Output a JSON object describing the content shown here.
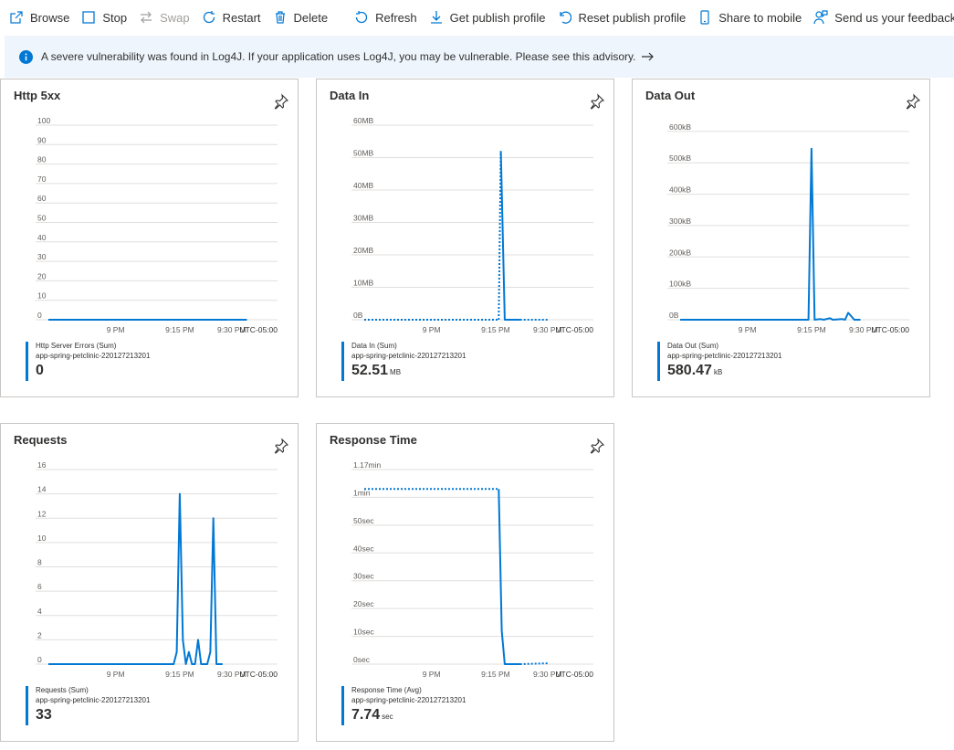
{
  "toolbar": {
    "browse": "Browse",
    "stop": "Stop",
    "swap": "Swap",
    "restart": "Restart",
    "delete": "Delete",
    "refresh": "Refresh",
    "get_publish_profile": "Get publish profile",
    "reset_publish_profile": "Reset publish profile",
    "share_to_mobile": "Share to mobile",
    "feedback": "Send us your feedback"
  },
  "banner": {
    "text": "A severe vulnerability was found in Log4J. If your application uses Log4J, you may be vulnerable. Please see this advisory."
  },
  "colors": {
    "accent": "#0078d4",
    "banner_bg": "#eef5fc",
    "grid": "#e1dfdd"
  },
  "tiles": [
    {
      "title": "Http 5xx",
      "metric": "Http Server Errors (Sum)",
      "resource": "app-spring-petclinic-220127213201",
      "value": "0",
      "unit": ""
    },
    {
      "title": "Data In",
      "metric": "Data In (Sum)",
      "resource": "app-spring-petclinic-220127213201",
      "value": "52.51",
      "unit": "MB"
    },
    {
      "title": "Data Out",
      "metric": "Data Out (Sum)",
      "resource": "app-spring-petclinic-220127213201",
      "value": "580.47",
      "unit": "kB"
    },
    {
      "title": "Requests",
      "metric": "Requests (Sum)",
      "resource": "app-spring-petclinic-220127213201",
      "value": "33",
      "unit": ""
    },
    {
      "title": "Response Time",
      "metric": "Response Time (Avg)",
      "resource": "app-spring-petclinic-220127213201",
      "value": "7.74",
      "unit": "sec"
    }
  ],
  "chart_data": [
    {
      "type": "line",
      "title": "Http 5xx",
      "x_ticks": [
        "9 PM",
        "9:15 PM",
        "9:30 PM"
      ],
      "timezone": "UTC-05:00",
      "y_ticks": [
        "0",
        "10",
        "20",
        "30",
        "40",
        "50",
        "60",
        "70",
        "80",
        "90",
        "100"
      ],
      "ylim": [
        0,
        100
      ],
      "series": [
        {
          "x": [
            0,
            65
          ],
          "y": [
            0,
            0
          ],
          "style": "solid"
        }
      ]
    },
    {
      "type": "line",
      "title": "Data In",
      "x_ticks": [
        "9 PM",
        "9:15 PM",
        "9:30 PM"
      ],
      "timezone": "UTC-05:00",
      "y_ticks": [
        "0B",
        "10MB",
        "20MB",
        "30MB",
        "40MB",
        "50MB",
        "60MB"
      ],
      "ylim": [
        0,
        60
      ],
      "series": [
        {
          "x": [
            0,
            44
          ],
          "y": [
            0,
            0
          ],
          "style": "dotted"
        },
        {
          "x": [
            44,
            44.7
          ],
          "y": [
            0,
            52
          ],
          "style": "dotted"
        },
        {
          "x": [
            44.7,
            46,
            51
          ],
          "y": [
            52,
            0,
            0
          ],
          "style": "solid"
        },
        {
          "x": [
            51,
            60
          ],
          "y": [
            0,
            0
          ],
          "style": "dotted"
        }
      ]
    },
    {
      "type": "line",
      "title": "Data Out",
      "x_ticks": [
        "9 PM",
        "9:15 PM",
        "9:30 PM"
      ],
      "timezone": "UTC-05:00",
      "y_ticks": [
        "0B",
        "100kB",
        "200kB",
        "300kB",
        "400kB",
        "500kB",
        "600kB"
      ],
      "ylim": [
        0,
        620
      ],
      "series": [
        {
          "x": [
            0,
            42,
            43,
            44,
            46,
            47,
            49,
            50,
            53,
            54,
            55,
            57,
            59
          ],
          "y": [
            0,
            0,
            545,
            0,
            2,
            0,
            5,
            0,
            2,
            0,
            22,
            0,
            0
          ],
          "style": "solid"
        }
      ]
    },
    {
      "type": "line",
      "title": "Requests",
      "x_ticks": [
        "9 PM",
        "9:15 PM",
        "9:30 PM"
      ],
      "timezone": "UTC-05:00",
      "y_ticks": [
        "0",
        "2",
        "4",
        "6",
        "8",
        "10",
        "12",
        "14",
        "16"
      ],
      "ylim": [
        0,
        16
      ],
      "series": [
        {
          "x": [
            0,
            41,
            42,
            43,
            44,
            45,
            46,
            47,
            48,
            49,
            50,
            52,
            53,
            54,
            55,
            57
          ],
          "y": [
            0,
            0,
            1,
            14,
            2,
            0,
            1,
            0,
            0,
            2,
            0,
            0,
            1,
            12,
            0,
            0
          ],
          "style": "solid"
        }
      ]
    },
    {
      "type": "line",
      "title": "Response Time",
      "x_ticks": [
        "9 PM",
        "9:15 PM",
        "9:30 PM"
      ],
      "timezone": "UTC-05:00",
      "y_ticks": [
        "0sec",
        "10sec",
        "20sec",
        "30sec",
        "40sec",
        "50sec",
        "1min",
        "1.17min"
      ],
      "ylim": [
        0,
        70
      ],
      "series": [
        {
          "x": [
            0,
            44
          ],
          "y": [
            63,
            63
          ],
          "style": "dotted"
        },
        {
          "x": [
            44,
            45,
            46,
            51
          ],
          "y": [
            63,
            12,
            0,
            0
          ],
          "style": "solid"
        },
        {
          "x": [
            51,
            60
          ],
          "y": [
            0,
            0.3
          ],
          "style": "dotted"
        }
      ]
    }
  ]
}
